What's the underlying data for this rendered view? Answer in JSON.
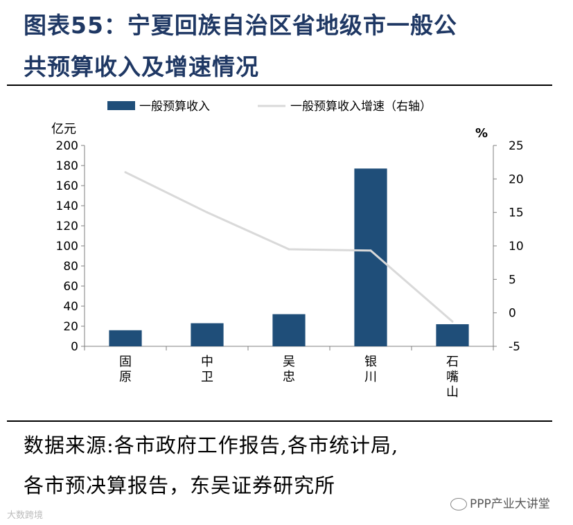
{
  "title": {
    "line1": "图表55：宁夏回族自治区省地级市一般公",
    "line2": "共预算收入及增速情况"
  },
  "source": {
    "line1": "数据来源:各市政府工作报告,各市统计局,",
    "line2": "各市预决算报告，东吴证券研究所"
  },
  "watermarks": {
    "right": "PPP产业大讲堂",
    "left": "大数跨境"
  },
  "chart_data": {
    "type": "bar",
    "categories": [
      "固原",
      "中卫",
      "吴忠",
      "银川",
      "石嘴山"
    ],
    "series": [
      {
        "name": "一般预算收入",
        "type": "bar",
        "axis": "left",
        "values": [
          16,
          23,
          32,
          177,
          22
        ],
        "color": "#1f4e79"
      },
      {
        "name": "一般预算收入增速（右轴）",
        "type": "line",
        "axis": "right",
        "values": [
          21,
          15,
          9.5,
          9.3,
          -1.3
        ],
        "color": "#d9d9d9"
      }
    ],
    "ylabel": "亿元",
    "y2label": "%",
    "ylim": [
      0,
      200
    ],
    "yticks": [
      0,
      20,
      40,
      60,
      80,
      100,
      120,
      140,
      160,
      180,
      200
    ],
    "y2lim": [
      -5,
      25
    ],
    "y2ticks": [
      -5,
      0,
      5,
      10,
      15,
      20,
      25
    ],
    "legend": "top",
    "grid": false
  }
}
